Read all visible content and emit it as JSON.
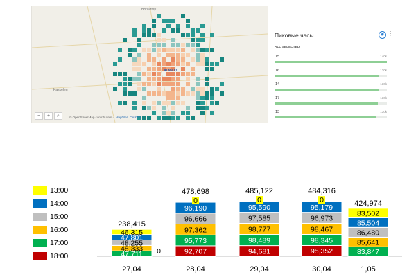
{
  "map": {
    "labels": {
      "north": "Boraldtay",
      "city": "ALMATY",
      "west": "Kaskelen"
    },
    "controls": {
      "zoom_out": "−",
      "zoom_in": "+",
      "search": "⌕"
    },
    "attribution": {
      "prefix": "© OpenStreetMap contributors · ",
      "link1": "MapTiler",
      "link2": "CARTO"
    }
  },
  "panel": {
    "title": "Пиковые часы",
    "subtitle": "ALL SELECTED",
    "icon": "eye-icon",
    "rows": [
      {
        "hour": "15",
        "count": "140k",
        "fraction": 1.0
      },
      {
        "hour": "16",
        "count": "130k",
        "fraction": 0.93
      },
      {
        "hour": "14",
        "count": "130k",
        "fraction": 0.93
      },
      {
        "hour": "17",
        "count": "130k",
        "fraction": 0.92
      },
      {
        "hour": "13",
        "count": "130k",
        "fraction": 0.91
      }
    ]
  },
  "legend": [
    {
      "label": "13:00",
      "color": "#ffff00"
    },
    {
      "label": "14:00",
      "color": "#0070c0"
    },
    {
      "label": "15:00",
      "color": "#bfbfbf"
    },
    {
      "label": "16:00",
      "color": "#ffc000"
    },
    {
      "label": "17:00",
      "color": "#00b050"
    },
    {
      "label": "18:00",
      "color": "#c00000"
    }
  ],
  "chart_data": {
    "type": "bar",
    "stacked": true,
    "categories": [
      "27,04",
      "28,04",
      "29,04",
      "30,04",
      "1,05"
    ],
    "totals": [
      "238,415",
      "478,698",
      "485,122",
      "484,316",
      "424,974"
    ],
    "series": [
      {
        "name": "18:00",
        "color": "#c00000",
        "values": [
          0,
          92707,
          94681,
          95352,
          0
        ],
        "labels": [
          "0",
          "92,707",
          "94,681",
          "95,352",
          ""
        ]
      },
      {
        "name": "17:00",
        "color": "#00b050",
        "values": [
          47711,
          95773,
          98489,
          98345,
          83847
        ],
        "labels": [
          "47,711",
          "95,773",
          "98,489",
          "98,345",
          "83,847"
        ]
      },
      {
        "name": "16:00",
        "color": "#ffc000",
        "values": [
          48333,
          97362,
          98777,
          98467,
          85641
        ],
        "labels": [
          "48,333",
          "97,362",
          "98,777",
          "98,467",
          "85,641"
        ]
      },
      {
        "name": "15:00",
        "color": "#bfbfbf",
        "values": [
          48255,
          96666,
          97585,
          96973,
          86480
        ],
        "labels": [
          "48,255",
          "96,666",
          "97,585",
          "96,973",
          "86,480"
        ]
      },
      {
        "name": "14:00",
        "color": "#0070c0",
        "values": [
          47801,
          96190,
          95590,
          95179,
          85504
        ],
        "labels": [
          "47,801",
          "96,190",
          "95,590",
          "95,179",
          "85,504"
        ]
      },
      {
        "name": "13:00",
        "color": "#ffff00",
        "values": [
          46315,
          0,
          0,
          0,
          83502
        ],
        "labels": [
          "46,315",
          "0",
          "0",
          "0",
          "83,502"
        ]
      }
    ]
  }
}
